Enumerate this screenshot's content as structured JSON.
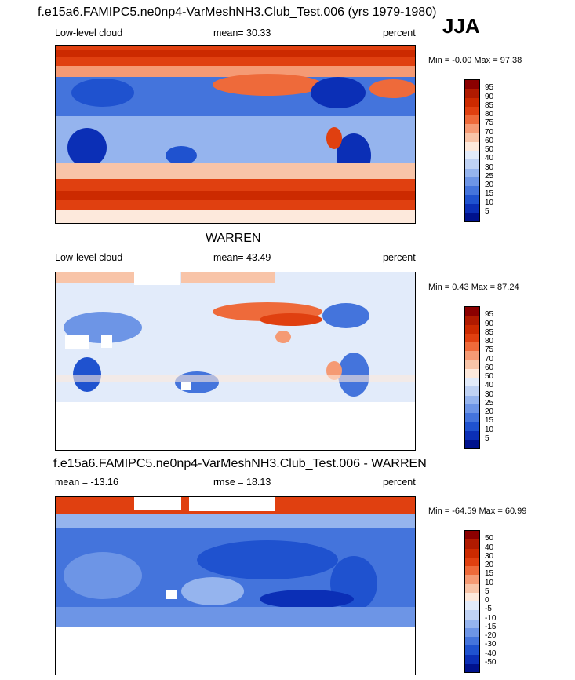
{
  "season": "JJA",
  "panels": [
    {
      "title": "f.e15a6.FAMIPC5.ne0np4-VarMeshNH3.Club_Test.006 (yrs 1979-1980)",
      "left_label": "Low-level cloud",
      "center_label": "mean=  30.33",
      "right_label": "percent",
      "minmax": "Min =  -0.00 Max =  97.38",
      "colorbar": {
        "labels": [
          "95",
          "90",
          "85",
          "80",
          "75",
          "70",
          "60",
          "50",
          "40",
          "30",
          "25",
          "20",
          "15",
          "10",
          "5"
        ],
        "colors": [
          "#8b0000",
          "#b01a00",
          "#cc2a00",
          "#e04010",
          "#ee6a3a",
          "#f59a74",
          "#f8c4a8",
          "#fde9dc",
          "#e2ebfa",
          "#bfd2f4",
          "#95b4ee",
          "#6d95e6",
          "#4474dc",
          "#1f52cf",
          "#0b2fb6",
          "#00128d"
        ]
      }
    },
    {
      "title": "WARREN",
      "left_label": "Low-level cloud",
      "center_label": "mean=  43.49",
      "right_label": "percent",
      "minmax": "Min =   0.43 Max =  87.24",
      "colorbar": {
        "labels": [
          "95",
          "90",
          "85",
          "80",
          "75",
          "70",
          "60",
          "50",
          "40",
          "30",
          "25",
          "20",
          "15",
          "10",
          "5"
        ],
        "colors": [
          "#8b0000",
          "#b01a00",
          "#cc2a00",
          "#e04010",
          "#ee6a3a",
          "#f59a74",
          "#f8c4a8",
          "#fde9dc",
          "#e2ebfa",
          "#bfd2f4",
          "#95b4ee",
          "#6d95e6",
          "#4474dc",
          "#1f52cf",
          "#0b2fb6",
          "#00128d"
        ]
      }
    },
    {
      "title": "f.e15a6.FAMIPC5.ne0np4-VarMeshNH3.Club_Test.006 - WARREN",
      "left_label": "mean = -13.16",
      "center_label": "rmse =  18.13",
      "right_label": "percent",
      "minmax": "Min = -64.59 Max =  60.99",
      "colorbar": {
        "labels": [
          "50",
          "40",
          "30",
          "20",
          "15",
          "10",
          "5",
          "0",
          "-5",
          "-10",
          "-15",
          "-20",
          "-30",
          "-40",
          "-50"
        ],
        "colors": [
          "#8b0000",
          "#b01a00",
          "#cc2a00",
          "#e04010",
          "#ee6a3a",
          "#f59a74",
          "#f8c4a8",
          "#fde9dc",
          "#e2ebfa",
          "#bfd2f4",
          "#95b4ee",
          "#6d95e6",
          "#4474dc",
          "#1f52cf",
          "#0b2fb6",
          "#00128d"
        ]
      }
    }
  ],
  "chart_data": [
    {
      "type": "heatmap",
      "title": "f.e15a6.FAMIPC5.ne0np4-VarMeshNH3.Club_Test.006 (yrs 1979-1980)",
      "variable": "Low-level cloud",
      "units": "percent",
      "mean": 30.33,
      "min": -0.0,
      "max": 97.38,
      "levels": [
        5,
        10,
        15,
        20,
        25,
        30,
        40,
        50,
        60,
        70,
        75,
        80,
        85,
        90,
        95
      ]
    },
    {
      "type": "heatmap",
      "title": "WARREN",
      "variable": "Low-level cloud",
      "units": "percent",
      "mean": 43.49,
      "min": 0.43,
      "max": 87.24,
      "levels": [
        5,
        10,
        15,
        20,
        25,
        30,
        40,
        50,
        60,
        70,
        75,
        80,
        85,
        90,
        95
      ]
    },
    {
      "type": "heatmap",
      "title": "f.e15a6.FAMIPC5.ne0np4-VarMeshNH3.Club_Test.006 - WARREN",
      "units": "percent",
      "mean": -13.16,
      "rmse": 18.13,
      "min": -64.59,
      "max": 60.99,
      "levels": [
        -50,
        -40,
        -30,
        -20,
        -15,
        -10,
        -5,
        0,
        5,
        10,
        15,
        20,
        30,
        40,
        50
      ]
    }
  ]
}
